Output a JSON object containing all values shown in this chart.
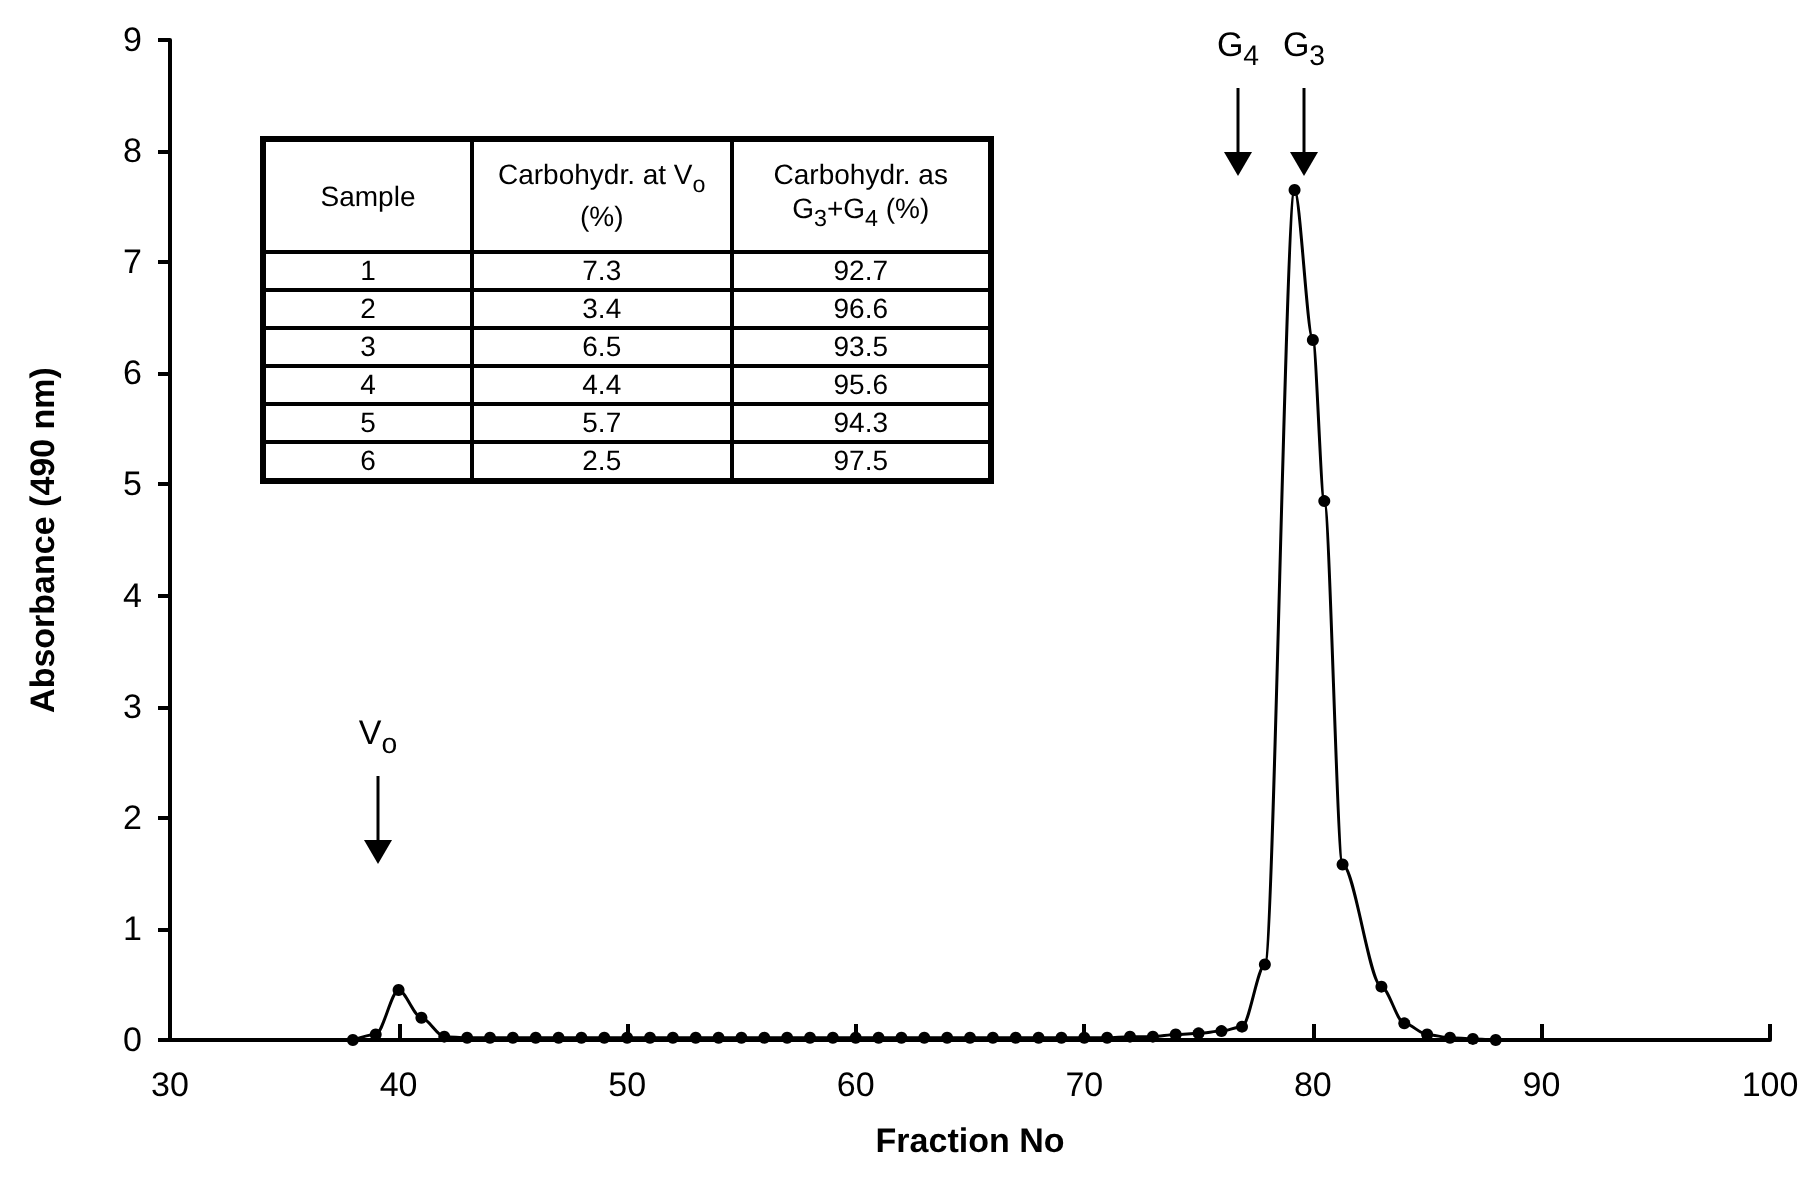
{
  "chart_data": {
    "type": "line",
    "xlabel": "Fraction No",
    "ylabel": "Absorbance (490 nm)",
    "xlim": [
      30,
      100
    ],
    "xticks": [
      30,
      40,
      50,
      60,
      70,
      80,
      90,
      100
    ],
    "ylim": [
      0,
      9
    ],
    "yticks": [
      0,
      1,
      2,
      3,
      4,
      5,
      6,
      7,
      8,
      9
    ],
    "marker": "circle",
    "line_style": "solid",
    "series": [
      {
        "color": "#000000",
        "x": [
          38,
          39,
          40,
          41,
          42,
          43,
          44,
          45,
          46,
          47,
          48,
          49,
          50,
          51,
          52,
          53,
          54,
          55,
          56,
          57,
          58,
          59,
          60,
          61,
          62,
          63,
          64,
          65,
          66,
          67,
          68,
          69,
          70,
          71,
          72,
          73,
          74,
          75,
          76,
          76.9,
          77.9,
          79.2,
          80,
          80.5,
          81.3,
          83,
          84,
          85,
          86,
          87,
          88
        ],
        "values": [
          0,
          0.05,
          0.45,
          0.2,
          0.03,
          0.02,
          0.02,
          0.02,
          0.02,
          0.02,
          0.02,
          0.02,
          0.02,
          0.02,
          0.02,
          0.02,
          0.02,
          0.02,
          0.02,
          0.02,
          0.02,
          0.02,
          0.02,
          0.02,
          0.02,
          0.02,
          0.02,
          0.02,
          0.02,
          0.02,
          0.02,
          0.02,
          0.02,
          0.02,
          0.03,
          0.03,
          0.05,
          0.06,
          0.08,
          0.12,
          0.68,
          7.65,
          6.3,
          4.85,
          1.58,
          0.48,
          0.15,
          0.05,
          0.02,
          0.01,
          0
        ]
      }
    ],
    "annotations": [
      "V$_{o}$",
      "G$_{4}$",
      "G$_{3}$",
      "Sample",
      "Carbohydr. at V$_{o}$ (%)",
      "Carbohydr. as G$_{3}$+G$_{4}$ (%)",
      "1",
      "7.3",
      "92.7",
      "2",
      "3.4",
      "96.6",
      "3",
      "6.5",
      "93.5",
      "4",
      "4.4",
      "95.6",
      "5",
      "5.7",
      "94.3",
      "6",
      "2.5",
      "97.5"
    ]
  }
}
